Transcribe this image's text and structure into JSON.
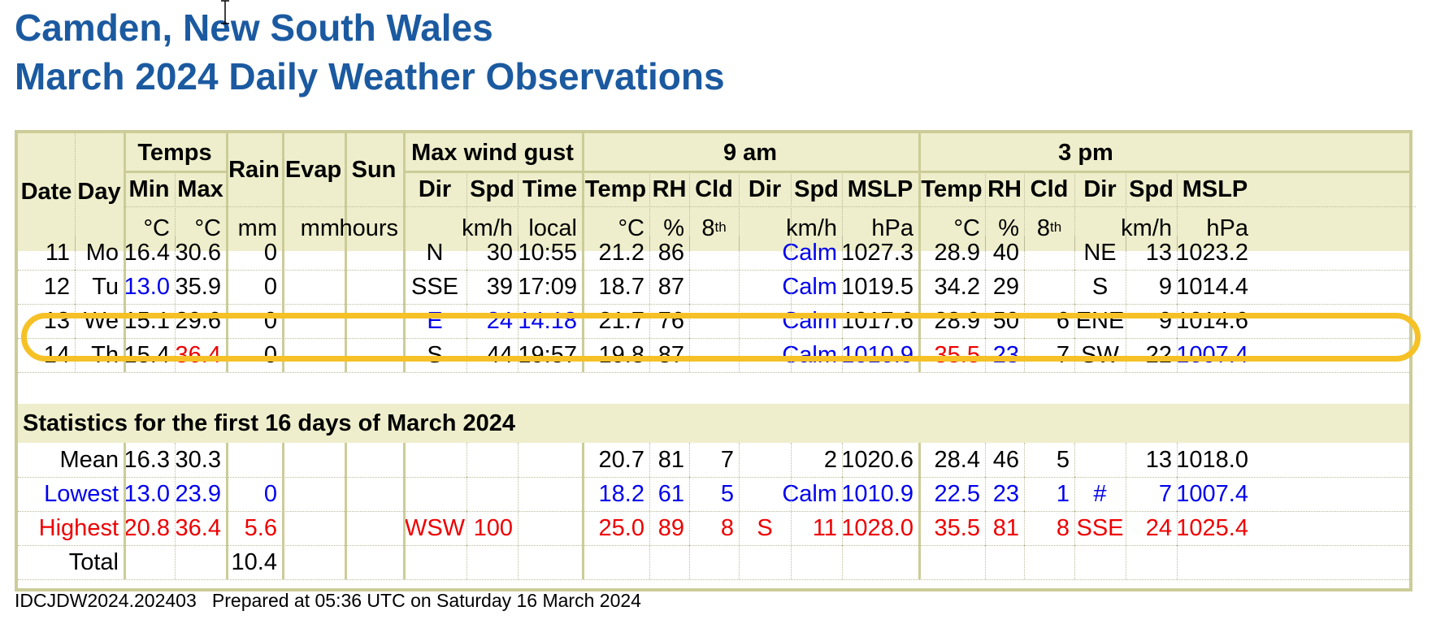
{
  "page": {
    "title_line1": "Camden, New South Wales",
    "title_line2": "March 2024 Daily Weather Observations",
    "footer": "IDCJDW2024.202403   Prepared at 05:36 UTC on Saturday 16 March 2024"
  },
  "header": {
    "date": "Date",
    "day": "Day",
    "temps": "Temps",
    "min": "Min",
    "max": "Max",
    "rain": "Rain",
    "evap": "Evap",
    "sun": "Sun",
    "max_wind_gust": "Max wind gust",
    "dir": "Dir",
    "spd": "Spd",
    "time": "Time",
    "nine_am": "9 am",
    "three_pm": "3 pm",
    "temp": "Temp",
    "rh": "RH",
    "cld": "Cld",
    "mslp": "MSLP",
    "unit_c": "°C",
    "unit_mm": "mm",
    "unit_hours": "hours",
    "unit_kmh": "km/h",
    "unit_local": "local",
    "unit_pct": "%",
    "unit_8": "8",
    "unit_th": "th",
    "unit_hpa": "hPa"
  },
  "rows": [
    {
      "date": "11",
      "day": "Mo",
      "min": "16.4",
      "max": "30.6",
      "rain": "0",
      "gdir": "N",
      "gspd": "30",
      "gtime": "10:55",
      "t9": "21.2",
      "rh9": "86",
      "cld9": "",
      "dir9": "",
      "spd9": "Calm",
      "mslp9": "1027.3",
      "t3": "28.9",
      "rh3": "40",
      "cld3": "",
      "dir3": "NE",
      "spd3": "13",
      "mslp3": "1023.2"
    },
    {
      "date": "12",
      "day": "Tu",
      "min": "13.0",
      "max": "35.9",
      "rain": "0",
      "gdir": "SSE",
      "gspd": "39",
      "gtime": "17:09",
      "t9": "18.7",
      "rh9": "87",
      "cld9": "",
      "dir9": "",
      "spd9": "Calm",
      "mslp9": "1019.5",
      "t3": "34.2",
      "rh3": "29",
      "cld3": "",
      "dir3": "S",
      "spd3": "9",
      "mslp3": "1014.4"
    },
    {
      "date": "13",
      "day": "We",
      "min": "15.1",
      "max": "29.6",
      "rain": "0",
      "gdir": "E",
      "gspd": "24",
      "gtime": "14:18",
      "t9": "21.7",
      "rh9": "76",
      "cld9": "",
      "dir9": "",
      "spd9": "Calm",
      "mslp9": "1017.6",
      "t3": "28.9",
      "rh3": "50",
      "cld3": "6",
      "dir3": "ENE",
      "spd3": "9",
      "mslp3": "1014.6"
    },
    {
      "date": "14",
      "day": "Th",
      "min": "15.4",
      "max": "36.4",
      "rain": "0",
      "gdir": "S",
      "gspd": "44",
      "gtime": "19:57",
      "t9": "19.8",
      "rh9": "87",
      "cld9": "",
      "dir9": "",
      "spd9": "Calm",
      "mslp9": "1010.9",
      "t3": "35.5",
      "rh3": "23",
      "cld3": "7",
      "dir3": "SW",
      "spd3": "22",
      "mslp3": "1007.4"
    }
  ],
  "statistics": {
    "heading": "Statistics for the first 16 days of March 2024",
    "mean": {
      "label": "Mean",
      "min": "16.3",
      "max": "30.3",
      "t9": "20.7",
      "rh9": "81",
      "cld9": "7",
      "spd9": "2",
      "mslp9": "1020.6",
      "t3": "28.4",
      "rh3": "46",
      "cld3": "5",
      "spd3": "13",
      "mslp3": "1018.0"
    },
    "lowest": {
      "label": "Lowest",
      "min": "13.0",
      "max": "23.9",
      "rain": "0",
      "t9": "18.2",
      "rh9": "61",
      "cld9": "5",
      "spd9": "Calm",
      "mslp9": "1010.9",
      "t3": "22.5",
      "rh3": "23",
      "cld3": "1",
      "dir3": "#",
      "spd3": "7",
      "mslp3": "1007.4"
    },
    "highest": {
      "label": "Highest",
      "min": "20.8",
      "max": "36.4",
      "rain": "5.6",
      "gdir": "WSW",
      "gspd": "100",
      "t9": "25.0",
      "rh9": "89",
      "cld9": "8",
      "dir9": "S",
      "spd9": "11",
      "mslp9": "1028.0",
      "t3": "35.5",
      "rh3": "81",
      "cld3": "8",
      "dir3": "SSE",
      "spd3": "24",
      "mslp3": "1025.4"
    },
    "total": {
      "label": "Total",
      "rain": "10.4"
    }
  },
  "colors": {
    "title": "#1b5aa0",
    "header_bg": "#eeeecc",
    "border": "#cccc99",
    "low": "#0000ee",
    "high": "#ee0000",
    "highlight_ring": "#f5c126"
  }
}
